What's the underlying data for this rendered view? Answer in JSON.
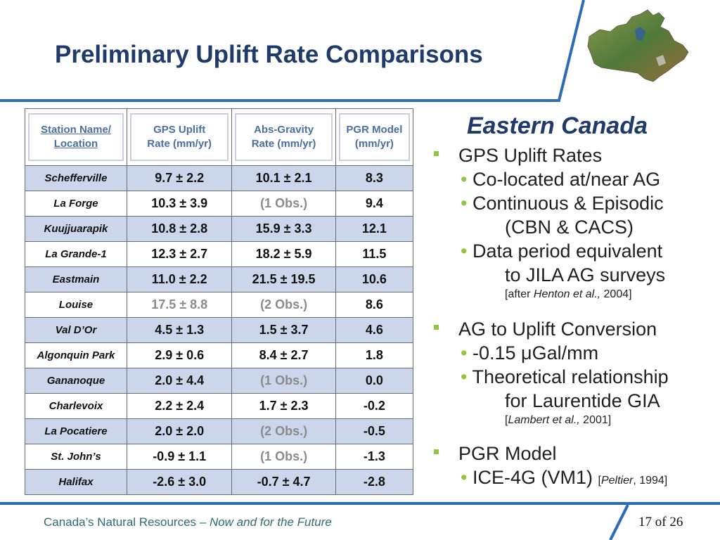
{
  "slide": {
    "title": "Preliminary Uplift Rate Comparisons",
    "accent_color": "#2a6db5",
    "title_color": "#1f3b6b"
  },
  "table": {
    "headers": [
      "Station Name/ Location",
      "GPS Uplift Rate (mm/yr)",
      "Abs-Gravity Rate (mm/yr)",
      "PGR Model (mm/yr)"
    ],
    "header_lines": [
      [
        "Station Name/",
        "Location"
      ],
      [
        "GPS Uplift",
        "Rate (mm/yr)"
      ],
      [
        "Abs-Gravity",
        "Rate (mm/yr)"
      ],
      [
        "PGR Model",
        "(mm/yr)"
      ]
    ],
    "rows": [
      {
        "station": "Schefferville",
        "gps": "9.7 ± 2.2",
        "ag": "10.1 ± 2.1",
        "pgr": "8.3"
      },
      {
        "station": "La Forge",
        "gps": "10.3 ± 3.9",
        "ag": "(1 Obs.)",
        "pgr": "9.4"
      },
      {
        "station": "Kuujjuarapik",
        "gps": "10.8 ± 2.8",
        "ag": "15.9 ± 3.3",
        "pgr": "12.1"
      },
      {
        "station": "La Grande-1",
        "gps": "12.3 ± 2.7",
        "ag": "18.2 ± 5.9",
        "pgr": "11.5"
      },
      {
        "station": "Eastmain",
        "gps": "11.0 ± 2.2",
        "ag": "21.5 ± 19.5",
        "pgr": "10.6"
      },
      {
        "station": "Louise",
        "gps": "17.5 ± 8.8",
        "ag": "(2 Obs.)",
        "pgr": "8.6"
      },
      {
        "station": "Val D’Or",
        "gps": "4.5 ± 1.3",
        "ag": "1.5 ± 3.7",
        "pgr": "4.6"
      },
      {
        "station": "Algonquin Park",
        "gps": "2.9 ± 0.6",
        "ag": "8.4 ± 2.7",
        "pgr": "1.8"
      },
      {
        "station": "Gananoque",
        "gps": "2.0 ± 4.4",
        "ag": "(1 Obs.)",
        "pgr": "0.0"
      },
      {
        "station": "Charlevoix",
        "gps": "2.2 ± 2.4",
        "ag": "1.7 ± 2.3",
        "pgr": "-0.2"
      },
      {
        "station": "La Pocatiere",
        "gps": "2.0 ± 2.0",
        "ag": "(2 Obs.)",
        "pgr": "-0.5"
      },
      {
        "station": "St. John’s",
        "gps": "-0.9 ± 1.1",
        "ag": "(1 Obs.)",
        "pgr": "-1.3"
      },
      {
        "station": "Halifax",
        "gps": "-2.6 ± 3.0",
        "ag": "-0.7 ± 4.7",
        "pgr": "-2.8"
      }
    ],
    "shaded_color": "#ccd6ea",
    "gray_text_color": "#8a8a8a"
  },
  "panel": {
    "title": "Eastern Canada",
    "b1": "GPS Uplift Rates",
    "b1s1": "Co-located at/near AG",
    "b1s2": "Continuous & Episodic",
    "b1s2b": "(CBN & CACS)",
    "b1s3": "Data period equivalent",
    "b1s3b": "to JILA AG surveys",
    "ref1_pre": "[after ",
    "ref1_auth": "Henton et al.,",
    "ref1_year": " 2004]",
    "b2": "AG to Uplift Conversion",
    "b2s1": "-0.15 μGal/mm",
    "b2s2": "Theoretical relationship",
    "b2s2b": "for Laurentide GIA",
    "ref2_pre": "[",
    "ref2_auth": "Lambert et al.,",
    "ref2_year": " 2001]",
    "b3": "PGR Model",
    "b3s1": "ICE-4G (VM1) ",
    "ref3_pre": "[",
    "ref3_auth": "Peltier",
    "ref3_year": ", 1994]",
    "bullet_color": "#8ec63f"
  },
  "footer": {
    "org": "Canada’s Natural Resources – ",
    "tagline": "Now and for the Future",
    "page": "17 of 26"
  }
}
